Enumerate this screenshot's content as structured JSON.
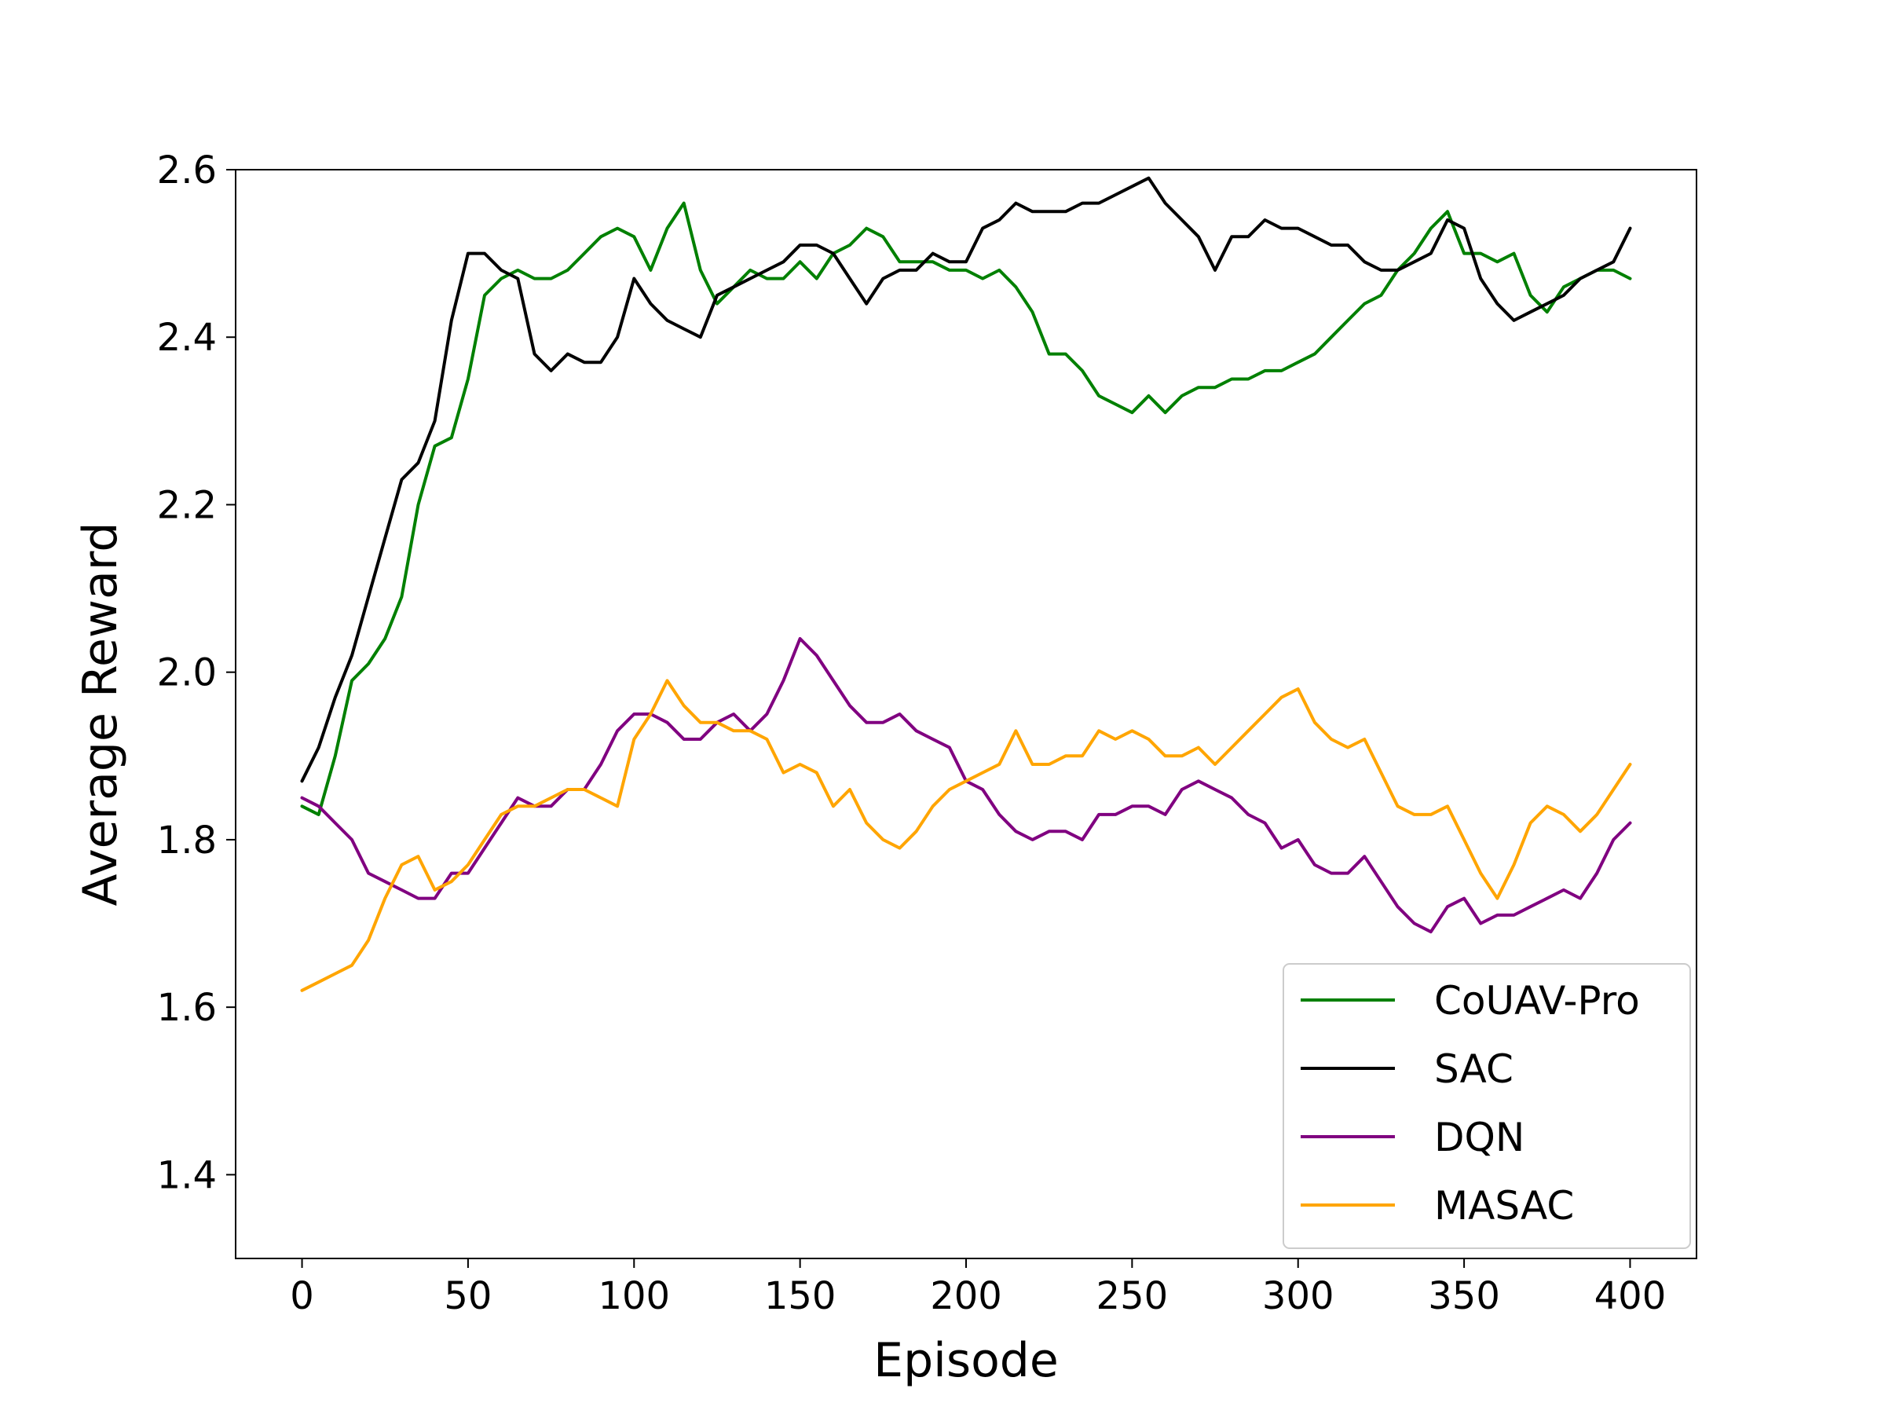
{
  "chart_data": {
    "type": "line",
    "xlabel": "Episode",
    "ylabel": "Average Reward",
    "xlim": [
      -20,
      420
    ],
    "ylim": [
      1.3,
      2.6
    ],
    "xticks": [
      0,
      50,
      100,
      150,
      200,
      250,
      300,
      350,
      400
    ],
    "yticks": [
      1.4,
      1.6,
      1.8,
      2.0,
      2.2,
      2.4,
      2.6
    ],
    "xtick_labels": [
      "0",
      "50",
      "100",
      "150",
      "200",
      "250",
      "300",
      "350",
      "400"
    ],
    "ytick_labels": [
      "1.4",
      "1.6",
      "1.8",
      "2.0",
      "2.2",
      "2.4",
      "2.6"
    ],
    "grid": false,
    "legend_position": "bottom-right",
    "series": [
      {
        "name": "CoUAV-Pro",
        "color": "#008000",
        "x": [
          0,
          5,
          10,
          15,
          20,
          25,
          30,
          35,
          40,
          45,
          50,
          55,
          60,
          65,
          70,
          75,
          80,
          85,
          90,
          95,
          100,
          105,
          110,
          115,
          120,
          125,
          130,
          135,
          140,
          145,
          150,
          155,
          160,
          165,
          170,
          175,
          180,
          185,
          190,
          195,
          200,
          205,
          210,
          215,
          220,
          225,
          230,
          235,
          240,
          245,
          250,
          255,
          260,
          265,
          270,
          275,
          280,
          285,
          290,
          295,
          300,
          305,
          310,
          315,
          320,
          325,
          330,
          335,
          340,
          345,
          350,
          355,
          360,
          365,
          370,
          375,
          380,
          385,
          390,
          395,
          400
        ],
        "values": [
          1.84,
          1.83,
          1.9,
          1.99,
          2.01,
          2.04,
          2.09,
          2.2,
          2.27,
          2.28,
          2.35,
          2.45,
          2.47,
          2.48,
          2.47,
          2.47,
          2.48,
          2.5,
          2.52,
          2.53,
          2.52,
          2.48,
          2.53,
          2.56,
          2.48,
          2.44,
          2.46,
          2.48,
          2.47,
          2.47,
          2.49,
          2.47,
          2.5,
          2.51,
          2.53,
          2.52,
          2.49,
          2.49,
          2.49,
          2.48,
          2.48,
          2.47,
          2.48,
          2.46,
          2.43,
          2.38,
          2.38,
          2.36,
          2.33,
          2.32,
          2.31,
          2.33,
          2.31,
          2.33,
          2.34,
          2.34,
          2.35,
          2.35,
          2.36,
          2.36,
          2.37,
          2.38,
          2.4,
          2.42,
          2.44,
          2.45,
          2.48,
          2.5,
          2.53,
          2.55,
          2.5,
          2.5,
          2.49,
          2.5,
          2.45,
          2.43,
          2.46,
          2.47,
          2.48,
          2.48,
          2.47
        ]
      },
      {
        "name": "SAC",
        "color": "#000000",
        "x": [
          0,
          5,
          10,
          15,
          20,
          25,
          30,
          35,
          40,
          45,
          50,
          55,
          60,
          65,
          70,
          75,
          80,
          85,
          90,
          95,
          100,
          105,
          110,
          115,
          120,
          125,
          130,
          135,
          140,
          145,
          150,
          155,
          160,
          165,
          170,
          175,
          180,
          185,
          190,
          195,
          200,
          205,
          210,
          215,
          220,
          225,
          230,
          235,
          240,
          245,
          250,
          255,
          260,
          265,
          270,
          275,
          280,
          285,
          290,
          295,
          300,
          305,
          310,
          315,
          320,
          325,
          330,
          335,
          340,
          345,
          350,
          355,
          360,
          365,
          370,
          375,
          380,
          385,
          390,
          395,
          400
        ],
        "values": [
          1.87,
          1.91,
          1.97,
          2.02,
          2.09,
          2.16,
          2.23,
          2.25,
          2.3,
          2.42,
          2.5,
          2.5,
          2.48,
          2.47,
          2.38,
          2.36,
          2.38,
          2.37,
          2.37,
          2.4,
          2.47,
          2.44,
          2.42,
          2.41,
          2.4,
          2.45,
          2.46,
          2.47,
          2.48,
          2.49,
          2.51,
          2.51,
          2.5,
          2.47,
          2.44,
          2.47,
          2.48,
          2.48,
          2.5,
          2.49,
          2.49,
          2.53,
          2.54,
          2.56,
          2.55,
          2.55,
          2.55,
          2.56,
          2.56,
          2.57,
          2.58,
          2.59,
          2.56,
          2.54,
          2.52,
          2.48,
          2.52,
          2.52,
          2.54,
          2.53,
          2.53,
          2.52,
          2.51,
          2.51,
          2.49,
          2.48,
          2.48,
          2.49,
          2.5,
          2.54,
          2.53,
          2.47,
          2.44,
          2.42,
          2.43,
          2.44,
          2.45,
          2.47,
          2.48,
          2.49,
          2.53
        ]
      },
      {
        "name": "DQN",
        "color": "#800080",
        "x": [
          0,
          5,
          10,
          15,
          20,
          25,
          30,
          35,
          40,
          45,
          50,
          55,
          60,
          65,
          70,
          75,
          80,
          85,
          90,
          95,
          100,
          105,
          110,
          115,
          120,
          125,
          130,
          135,
          140,
          145,
          150,
          155,
          160,
          165,
          170,
          175,
          180,
          185,
          190,
          195,
          200,
          205,
          210,
          215,
          220,
          225,
          230,
          235,
          240,
          245,
          250,
          255,
          260,
          265,
          270,
          275,
          280,
          285,
          290,
          295,
          300,
          305,
          310,
          315,
          320,
          325,
          330,
          335,
          340,
          345,
          350,
          355,
          360,
          365,
          370,
          375,
          380,
          385,
          390,
          395,
          400
        ],
        "values": [
          1.85,
          1.84,
          1.82,
          1.8,
          1.76,
          1.75,
          1.74,
          1.73,
          1.73,
          1.76,
          1.76,
          1.79,
          1.82,
          1.85,
          1.84,
          1.84,
          1.86,
          1.86,
          1.89,
          1.93,
          1.95,
          1.95,
          1.94,
          1.92,
          1.92,
          1.94,
          1.95,
          1.93,
          1.95,
          1.99,
          2.04,
          2.02,
          1.99,
          1.96,
          1.94,
          1.94,
          1.95,
          1.93,
          1.92,
          1.91,
          1.87,
          1.86,
          1.83,
          1.81,
          1.8,
          1.81,
          1.81,
          1.8,
          1.83,
          1.83,
          1.84,
          1.84,
          1.83,
          1.86,
          1.87,
          1.86,
          1.85,
          1.83,
          1.82,
          1.79,
          1.8,
          1.77,
          1.76,
          1.76,
          1.78,
          1.75,
          1.72,
          1.7,
          1.69,
          1.72,
          1.73,
          1.7,
          1.71,
          1.71,
          1.72,
          1.73,
          1.74,
          1.73,
          1.76,
          1.8,
          1.82
        ]
      },
      {
        "name": "MASAC",
        "color": "#FFA500",
        "x": [
          0,
          5,
          10,
          15,
          20,
          25,
          30,
          35,
          40,
          45,
          50,
          55,
          60,
          65,
          70,
          75,
          80,
          85,
          90,
          95,
          100,
          105,
          110,
          115,
          120,
          125,
          130,
          135,
          140,
          145,
          150,
          155,
          160,
          165,
          170,
          175,
          180,
          185,
          190,
          195,
          200,
          205,
          210,
          215,
          220,
          225,
          230,
          235,
          240,
          245,
          250,
          255,
          260,
          265,
          270,
          275,
          280,
          285,
          290,
          295,
          300,
          305,
          310,
          315,
          320,
          325,
          330,
          335,
          340,
          345,
          350,
          355,
          360,
          365,
          370,
          375,
          380,
          385,
          390,
          395,
          400
        ],
        "values": [
          1.62,
          1.63,
          1.64,
          1.65,
          1.68,
          1.73,
          1.77,
          1.78,
          1.74,
          1.75,
          1.77,
          1.8,
          1.83,
          1.84,
          1.84,
          1.85,
          1.86,
          1.86,
          1.85,
          1.84,
          1.92,
          1.95,
          1.99,
          1.96,
          1.94,
          1.94,
          1.93,
          1.93,
          1.92,
          1.88,
          1.89,
          1.88,
          1.84,
          1.86,
          1.82,
          1.8,
          1.79,
          1.81,
          1.84,
          1.86,
          1.87,
          1.88,
          1.89,
          1.93,
          1.89,
          1.89,
          1.9,
          1.9,
          1.93,
          1.92,
          1.93,
          1.92,
          1.9,
          1.9,
          1.91,
          1.89,
          1.91,
          1.93,
          1.95,
          1.97,
          1.98,
          1.94,
          1.92,
          1.91,
          1.92,
          1.88,
          1.84,
          1.83,
          1.83,
          1.84,
          1.8,
          1.76,
          1.73,
          1.77,
          1.82,
          1.84,
          1.83,
          1.81,
          1.83,
          1.86,
          1.89
        ]
      }
    ]
  }
}
